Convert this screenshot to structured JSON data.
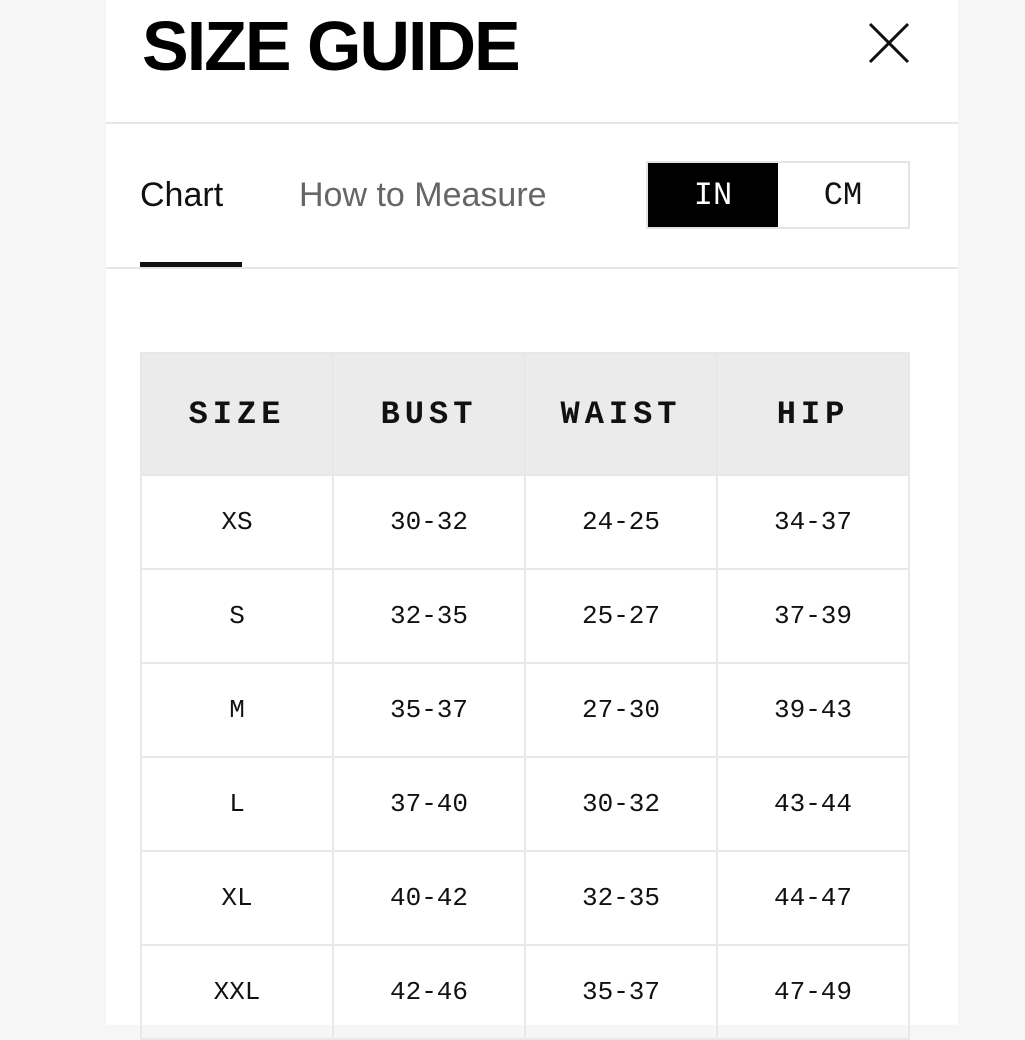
{
  "header": {
    "title": "SIZE GUIDE",
    "close_icon": "close-icon"
  },
  "tabs": [
    {
      "label": "Chart",
      "active": true
    },
    {
      "label": "How to Measure",
      "active": false
    }
  ],
  "units": {
    "options": [
      "IN",
      "CM"
    ],
    "selected": "IN"
  },
  "table": {
    "columns": [
      "SIZE",
      "BUST",
      "WAIST",
      "HIP"
    ],
    "rows": [
      [
        "XS",
        "30-32",
        "24-25",
        "34-37"
      ],
      [
        "S",
        "32-35",
        "25-27",
        "37-39"
      ],
      [
        "M",
        "35-37",
        "27-30",
        "39-43"
      ],
      [
        "L",
        "37-40",
        "30-32",
        "43-44"
      ],
      [
        "XL",
        "40-42",
        "32-35",
        "44-47"
      ],
      [
        "XXL",
        "42-46",
        "35-37",
        "47-49"
      ]
    ]
  }
}
